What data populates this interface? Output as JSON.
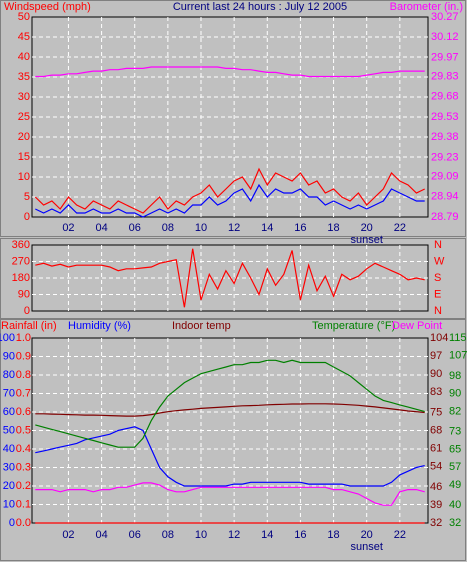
{
  "chart_data": [
    {
      "type": "line",
      "title": "Current last 24 hours : July 12 2005",
      "x": [
        0,
        0.5,
        1,
        1.5,
        2,
        2.5,
        3,
        3.5,
        4,
        4.5,
        5,
        5.5,
        6,
        6.5,
        7,
        7.5,
        8,
        8.5,
        9,
        9.5,
        10,
        10.5,
        11,
        11.5,
        12,
        12.5,
        13,
        13.5,
        14,
        14.5,
        15,
        15.5,
        16,
        16.5,
        17,
        17.5,
        18,
        18.5,
        19,
        19.5,
        20,
        20.5,
        21,
        21.5,
        22,
        22.5,
        23,
        23.5
      ],
      "xlim": [
        -0.2,
        23.7
      ],
      "xticks": [
        {
          "value": 2,
          "label": "02"
        },
        {
          "value": 4,
          "label": "04"
        },
        {
          "value": 6,
          "label": "06"
        },
        {
          "value": 8,
          "label": "08"
        },
        10,
        12,
        14,
        16,
        18,
        20,
        22
      ],
      "annotations": [
        {
          "text": "sunset",
          "x": 20
        }
      ],
      "axes": [
        {
          "label": "Windspeed (mph)",
          "color": "#ff0000",
          "lim": [
            0,
            50
          ],
          "ticks": [
            0,
            5,
            10,
            15,
            20,
            25,
            30,
            35,
            40,
            45,
            50
          ]
        },
        {
          "label": "Barometer (in.)",
          "color": "#ff00ff",
          "lim": [
            28.79,
            30.27
          ],
          "ticks": [
            28.79,
            28.94,
            29.09,
            29.23,
            29.38,
            29.53,
            29.68,
            29.83,
            29.97,
            30.12,
            30.27
          ]
        }
      ],
      "grid": true,
      "series": [
        {
          "color": "#ff0000",
          "axis": 0,
          "values": [
            5,
            3,
            4,
            2,
            5,
            3,
            2,
            4,
            3,
            2,
            4,
            3,
            2,
            1,
            3,
            5,
            2,
            4,
            3,
            5,
            6,
            8,
            5,
            7,
            9,
            10,
            7,
            12,
            8,
            11,
            10,
            9,
            11,
            8,
            9,
            6,
            7,
            5,
            4,
            6,
            3,
            5,
            7,
            11,
            9,
            8,
            6,
            7
          ]
        },
        {
          "color": "#0000ff",
          "axis": 0,
          "values": [
            2,
            1,
            2,
            1,
            3,
            1,
            1,
            2,
            1,
            1,
            2,
            1,
            1,
            0,
            1,
            2,
            1,
            2,
            1,
            3,
            3,
            5,
            3,
            4,
            6,
            7,
            4,
            8,
            5,
            7,
            6,
            6,
            7,
            5,
            5,
            3,
            4,
            3,
            2,
            3,
            2,
            3,
            4,
            7,
            6,
            5,
            4,
            4
          ]
        },
        {
          "color": "#ff00ff",
          "axis": 1,
          "values": [
            29.83,
            29.83,
            29.84,
            29.84,
            29.85,
            29.85,
            29.86,
            29.87,
            29.87,
            29.88,
            29.88,
            29.89,
            29.89,
            29.89,
            29.9,
            29.9,
            29.9,
            29.9,
            29.9,
            29.9,
            29.9,
            29.9,
            29.9,
            29.89,
            29.89,
            29.88,
            29.88,
            29.87,
            29.86,
            29.86,
            29.85,
            29.84,
            29.84,
            29.83,
            29.83,
            29.83,
            29.83,
            29.83,
            29.83,
            29.83,
            29.84,
            29.85,
            29.86,
            29.86,
            29.87,
            29.87,
            29.87,
            29.87
          ]
        }
      ]
    },
    {
      "type": "line",
      "x": [
        0,
        0.5,
        1,
        1.5,
        2,
        2.5,
        3,
        3.5,
        4,
        4.5,
        5,
        5.5,
        6,
        6.5,
        7,
        7.5,
        8,
        8.5,
        9,
        9.5,
        10,
        10.5,
        11,
        11.5,
        12,
        12.5,
        13,
        13.5,
        14,
        14.5,
        15,
        15.5,
        16,
        16.5,
        17,
        17.5,
        18,
        18.5,
        19,
        19.5,
        20,
        20.5,
        21,
        21.5,
        22,
        22.5,
        23,
        23.5
      ],
      "xlim": [
        -0.2,
        23.7
      ],
      "xgrid": [
        2,
        4,
        6,
        8,
        10,
        12,
        14,
        16,
        18,
        20,
        22
      ],
      "axes": [
        {
          "color": "#ff0000",
          "lim": [
            0,
            360
          ],
          "ticks": [
            0,
            90,
            180,
            270,
            360
          ]
        },
        {
          "color": "#ff0000",
          "lim": [
            0,
            360
          ],
          "ticks": [
            {
              "value": 0,
              "label": "N"
            },
            {
              "value": 90,
              "label": "E"
            },
            {
              "value": 180,
              "label": "S"
            },
            {
              "value": 270,
              "label": "W"
            },
            {
              "value": 360,
              "label": "N"
            }
          ]
        }
      ],
      "grid": true,
      "series": [
        {
          "color": "#ff0000",
          "axis": 0,
          "values": [
            250,
            260,
            245,
            255,
            240,
            250,
            250,
            250,
            250,
            240,
            220,
            230,
            230,
            235,
            240,
            260,
            270,
            280,
            20,
            340,
            60,
            200,
            120,
            220,
            150,
            260,
            180,
            90,
            230,
            140,
            200,
            330,
            60,
            250,
            110,
            190,
            80,
            200,
            170,
            190,
            230,
            260,
            240,
            220,
            200,
            170,
            180,
            170
          ]
        }
      ]
    },
    {
      "type": "line",
      "x": [
        0,
        0.5,
        1,
        1.5,
        2,
        2.5,
        3,
        3.5,
        4,
        4.5,
        5,
        5.5,
        6,
        6.5,
        7,
        7.5,
        8,
        8.5,
        9,
        9.5,
        10,
        10.5,
        11,
        11.5,
        12,
        12.5,
        13,
        13.5,
        14,
        14.5,
        15,
        15.5,
        16,
        16.5,
        17,
        17.5,
        18,
        18.5,
        19,
        19.5,
        20,
        20.5,
        21,
        21.5,
        22,
        22.5,
        23,
        23.5
      ],
      "xlim": [
        -0.2,
        23.7
      ],
      "xticks": [
        {
          "value": 2,
          "label": "02"
        },
        {
          "value": 4,
          "label": "04"
        },
        {
          "value": 6,
          "label": "06"
        },
        {
          "value": 8,
          "label": "08"
        },
        10,
        12,
        14,
        16,
        18,
        20,
        22
      ],
      "annotations": [
        {
          "text": "sunset",
          "x": 20
        }
      ],
      "axes": [
        {
          "label": "Rainfall (in)",
          "color": "#ff0000",
          "lim": [
            0,
            1
          ],
          "ticks": [
            {
              "value": 0,
              "label": "0.0"
            },
            0.1,
            0.2,
            0.3,
            0.4,
            0.5,
            0.6,
            0.7,
            0.8,
            0.9,
            {
              "value": 1,
              "label": "1.0"
            }
          ]
        },
        {
          "label": "Humidity (%)",
          "color": "#0000ff",
          "lim": [
            0,
            100
          ],
          "ticks": [
            0,
            10,
            20,
            30,
            40,
            50,
            60,
            70,
            80,
            90,
            100
          ]
        },
        {
          "label": "Indoor temp",
          "color": "#800000",
          "lim": [
            32,
            104
          ],
          "ticks": [
            32,
            39,
            46,
            54,
            61,
            68,
            75,
            83,
            90,
            97,
            104
          ]
        },
        {
          "label": "Temperature (°F)",
          "color": "#008000",
          "lim": [
            32,
            115
          ],
          "ticks": [
            32,
            40,
            49,
            57,
            65,
            73,
            82,
            90,
            98,
            107,
            115
          ]
        },
        {
          "label": "Dew Point",
          "color": "#ff00ff"
        }
      ],
      "grid": true,
      "series": [
        {
          "color": "#ff0000",
          "axis": 0,
          "values": [
            0,
            0,
            0,
            0,
            0,
            0,
            0,
            0,
            0,
            0,
            0,
            0,
            0,
            0,
            0,
            0,
            0,
            0,
            0,
            0,
            0,
            0,
            0,
            0,
            0,
            0,
            0,
            0,
            0,
            0,
            0,
            0,
            0,
            0,
            0,
            0,
            0,
            0,
            0,
            0,
            0,
            0,
            0,
            0,
            0,
            0,
            0,
            0
          ]
        },
        {
          "color": "#0000ff",
          "axis": 1,
          "values": [
            38,
            39,
            40,
            41,
            42,
            43,
            45,
            46,
            47,
            48,
            50,
            51,
            52,
            50,
            40,
            30,
            25,
            22,
            20,
            20,
            20,
            20,
            20,
            20,
            21,
            21,
            22,
            22,
            22,
            22,
            22,
            22,
            22,
            21,
            21,
            21,
            21,
            21,
            20,
            20,
            20,
            20,
            20,
            22,
            26,
            28,
            30,
            31
          ]
        },
        {
          "color": "#800000",
          "axis": 2,
          "values": [
            74.5,
            74.5,
            74.4,
            74.3,
            74.2,
            74.1,
            74,
            74,
            73.9,
            73.8,
            73.7,
            73.6,
            73.6,
            73.8,
            74.2,
            74.8,
            75.3,
            75.7,
            76,
            76.3,
            76.6,
            76.8,
            77,
            77.2,
            77.4,
            77.6,
            77.7,
            77.8,
            78,
            78.1,
            78.2,
            78.3,
            78.3,
            78.4,
            78.4,
            78.4,
            78.3,
            78.2,
            78,
            77.8,
            77.5,
            77.2,
            76.8,
            76.4,
            76,
            75.6,
            75.3,
            75
          ]
        },
        {
          "color": "#008000",
          "axis": 3,
          "values": [
            76,
            75,
            74,
            73,
            72,
            71,
            70,
            69,
            68,
            67,
            66,
            66,
            66,
            70,
            78,
            84,
            89,
            92,
            95,
            97,
            99,
            100,
            101,
            102,
            103,
            103,
            104,
            104,
            105,
            105,
            104,
            105,
            104,
            104,
            104,
            104,
            102,
            100,
            98,
            95,
            92,
            89,
            87,
            86,
            85,
            84,
            83,
            82
          ]
        },
        {
          "color": "#ff00ff",
          "axis": 3,
          "values": [
            47,
            47,
            47,
            46,
            47,
            47,
            47,
            46,
            47,
            47,
            48,
            48,
            49,
            50,
            50,
            49,
            47,
            46,
            46,
            47,
            48,
            48,
            48,
            48,
            48,
            48,
            48,
            48,
            48,
            48,
            48,
            48,
            48,
            48,
            48,
            48,
            47,
            47,
            46,
            45,
            43,
            41,
            40,
            40,
            46,
            47,
            47,
            46
          ]
        }
      ]
    }
  ]
}
